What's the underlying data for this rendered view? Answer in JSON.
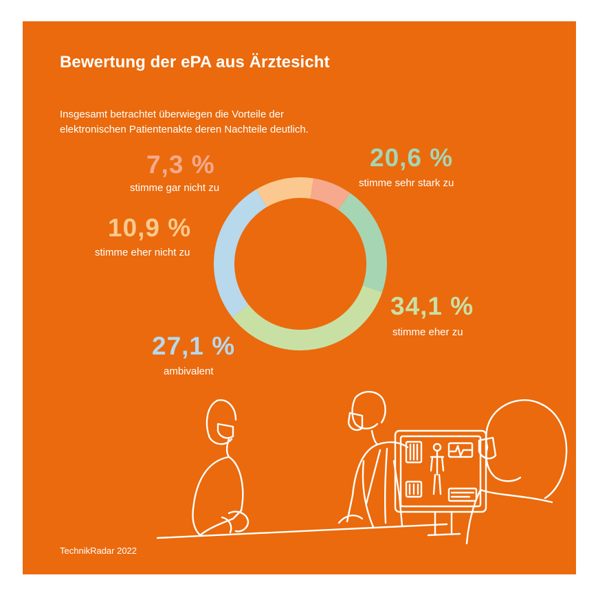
{
  "title": "Bewertung der ePA aus Ärztesicht",
  "subtitle_lines": [
    "Insgesamt betrachtet überwiegen die Vorteile der",
    "elektronischen Patientenakte deren Nachteile deutlich."
  ],
  "footer": "TechnikRadar 2022",
  "colors": {
    "background": "#ea6a0d",
    "stimme_sehr_stark_zu": "#a6d5b3",
    "stimme_eher_zu": "#c9e0a5",
    "ambivalent": "#b8d8ec",
    "stimme_eher_nicht_zu": "#fbc98f",
    "stimme_gar_nicht_zu": "#f6a98c"
  },
  "chart_data": {
    "type": "pie",
    "donut": true,
    "start_angle_deg": -55,
    "direction": "clockwise",
    "slices": [
      {
        "label": "stimme sehr stark zu",
        "value": 20.6,
        "display": "20,6 %",
        "color": "#a6d5b3"
      },
      {
        "label": "stimme eher zu",
        "value": 34.1,
        "display": "34,1 %",
        "color": "#c9e0a5"
      },
      {
        "label": "ambivalent",
        "value": 27.1,
        "display": "27,1 %",
        "color": "#b8d8ec"
      },
      {
        "label": "stimme eher nicht zu",
        "value": 10.9,
        "display": "10,9 %",
        "color": "#fbc98f"
      },
      {
        "label": "stimme gar nicht zu",
        "value": 7.3,
        "display": "7,3 %",
        "color": "#f6a98c"
      }
    ]
  }
}
